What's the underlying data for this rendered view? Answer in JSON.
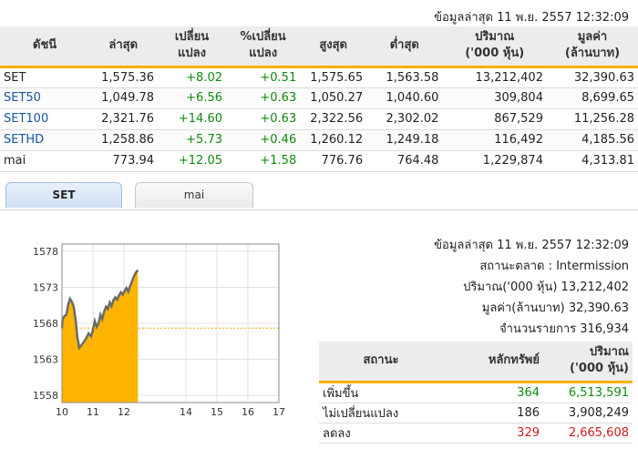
{
  "timestamp_top": "ข้อมูลล่าสุด 11 พ.ย. 2557 12:32:09",
  "index_table": {
    "headers": [
      {
        "l1": "ดัชนี",
        "l2": ""
      },
      {
        "l1": "ล่าสุด",
        "l2": ""
      },
      {
        "l1": "เปลี่ยน",
        "l2": "แปลง"
      },
      {
        "l1": "%เปลี่ยน",
        "l2": "แปลง"
      },
      {
        "l1": "สูงสุด",
        "l2": ""
      },
      {
        "l1": "ต่ำสุด",
        "l2": ""
      },
      {
        "l1": "ปริมาณ",
        "l2": "('000 หุ้น)"
      },
      {
        "l1": "มูลค่า",
        "l2": "(ล้านบาท)"
      }
    ],
    "rows": [
      {
        "name": "SET",
        "last": "1,575.36",
        "change": "+8.02",
        "pct": "+0.51",
        "high": "1,575.65",
        "low": "1,563.58",
        "volume": "13,212,402",
        "value": "32,390.63"
      },
      {
        "name": "SET50",
        "last": "1,049.78",
        "change": "+6.56",
        "pct": "+0.63",
        "high": "1,050.27",
        "low": "1,040.60",
        "volume": "309,804",
        "value": "8,699.65"
      },
      {
        "name": "SET100",
        "last": "2,321.76",
        "change": "+14.60",
        "pct": "+0.63",
        "high": "2,322.56",
        "low": "2,302.02",
        "volume": "867,529",
        "value": "11,256.28"
      },
      {
        "name": "SETHD",
        "last": "1,258.86",
        "change": "+5.73",
        "pct": "+0.46",
        "high": "1,260.12",
        "low": "1,249.18",
        "volume": "116,492",
        "value": "4,185.56"
      },
      {
        "name": "mai",
        "last": "773.94",
        "change": "+12.05",
        "pct": "+1.58",
        "high": "776.76",
        "low": "764.48",
        "volume": "1,229,874",
        "value": "4,313.81"
      }
    ]
  },
  "tabs": [
    {
      "label": "SET",
      "active": true
    },
    {
      "label": "mai",
      "active": false
    }
  ],
  "chart_data": {
    "type": "area",
    "title": "",
    "xlabel": "",
    "ylabel": "",
    "x_ticks": [
      "10",
      "11",
      "12",
      "14",
      "15",
      "16",
      "17"
    ],
    "y_ticks": [
      "1578",
      "1573",
      "1568",
      "1563",
      "1558"
    ],
    "ylim": [
      1557,
      1579
    ],
    "reference_value": 1567.34,
    "color_fill": "#ffb400",
    "color_line": "#6b6b6b",
    "color_reference": "#f5a400",
    "series": [
      {
        "values": [
          [
            10.0,
            1567.3
          ],
          [
            10.02,
            1568.6
          ],
          [
            10.08,
            1569.0
          ],
          [
            10.14,
            1569.2
          ],
          [
            10.2,
            1570.6
          ],
          [
            10.26,
            1571.4
          ],
          [
            10.32,
            1571.0
          ],
          [
            10.38,
            1570.3
          ],
          [
            10.44,
            1568.4
          ],
          [
            10.5,
            1566.0
          ],
          [
            10.56,
            1564.6
          ],
          [
            10.62,
            1564.9
          ],
          [
            10.7,
            1565.4
          ],
          [
            10.78,
            1565.9
          ],
          [
            10.86,
            1566.6
          ],
          [
            10.94,
            1566.2
          ],
          [
            11.0,
            1567.1
          ],
          [
            11.06,
            1568.3
          ],
          [
            11.12,
            1567.5
          ],
          [
            11.18,
            1568.0
          ],
          [
            11.24,
            1569.2
          ],
          [
            11.3,
            1568.6
          ],
          [
            11.36,
            1569.6
          ],
          [
            11.42,
            1570.3
          ],
          [
            11.48,
            1570.0
          ],
          [
            11.54,
            1570.9
          ],
          [
            11.6,
            1570.4
          ],
          [
            11.66,
            1571.2
          ],
          [
            11.72,
            1571.6
          ],
          [
            11.78,
            1571.3
          ],
          [
            11.84,
            1571.9
          ],
          [
            11.9,
            1572.3
          ],
          [
            11.96,
            1572.0
          ],
          [
            12.02,
            1572.5
          ],
          [
            12.08,
            1572.9
          ],
          [
            12.14,
            1572.4
          ],
          [
            12.2,
            1573.2
          ],
          [
            12.26,
            1573.8
          ],
          [
            12.32,
            1574.5
          ],
          [
            12.38,
            1575.0
          ],
          [
            12.45,
            1575.4
          ]
        ]
      }
    ]
  },
  "market_info": {
    "timestamp": "ข้อมูลล่าสุด 11 พ.ย. 2557 12:32:09",
    "status": "สถานะตลาด : Intermission",
    "volume": "ปริมาณ('000 หุ้น) 13,212,402",
    "value": "มูลค่า(ล้านบาท) 32,390.63",
    "trades": "จำนวนรายการ 316,934"
  },
  "summary_table": {
    "headers": [
      {
        "l1": "สถานะ",
        "l2": ""
      },
      {
        "l1": "หลักทรัพย์",
        "l2": ""
      },
      {
        "l1": "ปริมาณ",
        "l2": "('000 หุ้น)"
      }
    ],
    "rows": [
      {
        "label": "เพิ่มขึ้น",
        "count": "364",
        "volume": "6,513,591",
        "tone": "green"
      },
      {
        "label": "ไม่เปลี่ยนแปลง",
        "count": "186",
        "volume": "3,908,249",
        "tone": "dark"
      },
      {
        "label": "ลดลง",
        "count": "329",
        "volume": "2,665,608",
        "tone": "red"
      }
    ]
  }
}
